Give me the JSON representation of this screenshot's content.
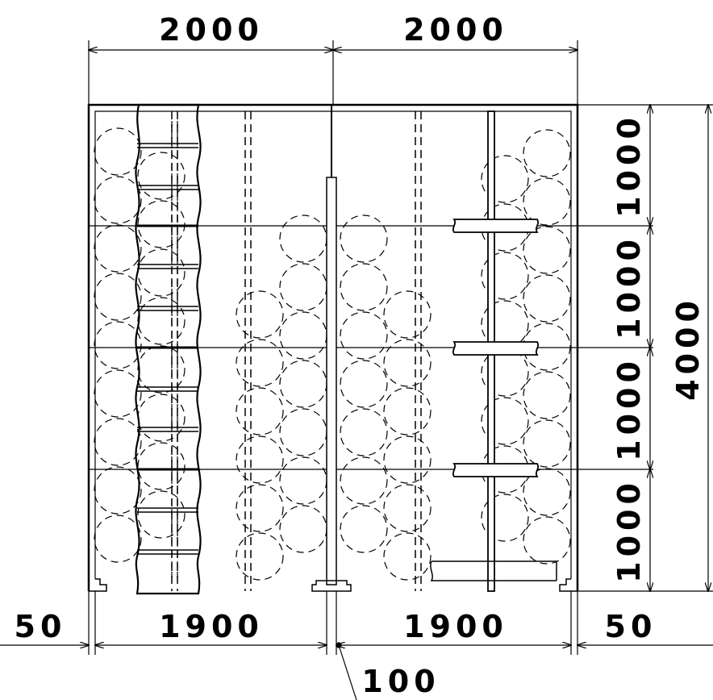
{
  "dimensions": {
    "top_left": "2000",
    "top_right": "2000",
    "right_rows": [
      "1000",
      "1000",
      "1000",
      "1000"
    ],
    "right_total": "4000",
    "bottom_left_edge": "50",
    "bottom_left_span": "1900",
    "bottom_right_span": "1900",
    "bottom_right_edge": "50",
    "center_gap": "100"
  }
}
